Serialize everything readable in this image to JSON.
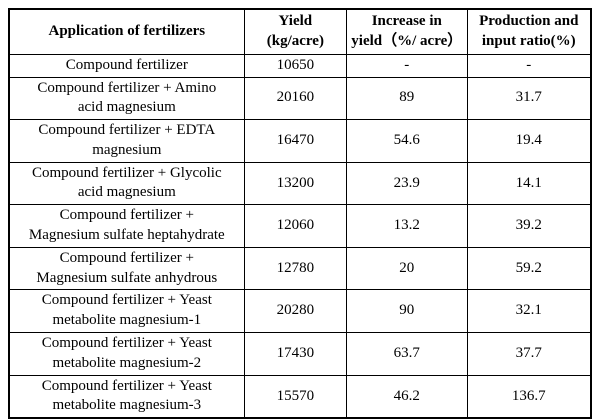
{
  "table": {
    "headers": {
      "application": "Application of fertilizers",
      "yield": "Yield\n(kg/acre)",
      "increase": "Increase in\nyield（%/ acre）",
      "ratio": "Production and\ninput ratio(%)"
    },
    "rows": [
      {
        "application": "Compound fertilizer",
        "yield": "10650",
        "increase": "-",
        "ratio": "-"
      },
      {
        "application": "Compound fertilizer + Amino\nacid magnesium",
        "yield": "20160",
        "increase": "89",
        "ratio": "31.7"
      },
      {
        "application": "Compound fertilizer + EDTA\nmagnesium",
        "yield": "16470",
        "increase": "54.6",
        "ratio": "19.4"
      },
      {
        "application": "Compound fertilizer + Glycolic\nacid magnesium",
        "yield": "13200",
        "increase": "23.9",
        "ratio": "14.1"
      },
      {
        "application": "Compound fertilizer +\nMagnesium sulfate heptahydrate",
        "yield": "12060",
        "increase": "13.2",
        "ratio": "39.2"
      },
      {
        "application": "Compound fertilizer +\nMagnesium sulfate anhydrous",
        "yield": "12780",
        "increase": "20",
        "ratio": "59.2"
      },
      {
        "application": "Compound fertilizer + Yeast\nmetabolite magnesium-1",
        "yield": "20280",
        "increase": "90",
        "ratio": "32.1"
      },
      {
        "application": "Compound fertilizer + Yeast\nmetabolite magnesium-2",
        "yield": "17430",
        "increase": "63.7",
        "ratio": "37.7"
      },
      {
        "application": "Compound fertilizer + Yeast\nmetabolite magnesium-3",
        "yield": "15570",
        "increase": "46.2",
        "ratio": "136.7"
      }
    ]
  },
  "colors": {
    "text": "#000000",
    "border": "#000000",
    "background": "#ffffff"
  }
}
